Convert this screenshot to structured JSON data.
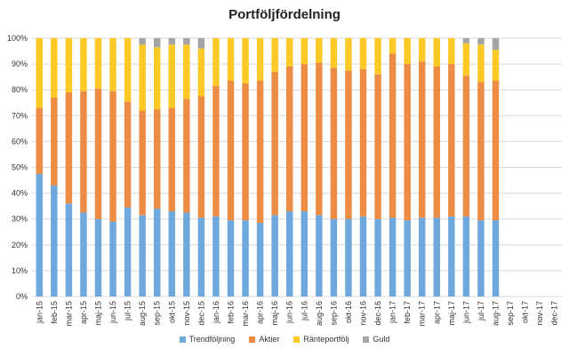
{
  "chart_data": {
    "type": "bar",
    "stacked": true,
    "title": "Portföljfördelning",
    "xlabel": "",
    "ylabel": "",
    "ylim": [
      0,
      100
    ],
    "y_ticks": [
      "0%",
      "10%",
      "20%",
      "30%",
      "40%",
      "50%",
      "60%",
      "70%",
      "80%",
      "90%",
      "100%"
    ],
    "grid": true,
    "legend_position": "bottom",
    "categories": [
      "jan-15",
      "feb-15",
      "mar-15",
      "apr-15",
      "maj-15",
      "jun-15",
      "jul-15",
      "aug-15",
      "sep-15",
      "okt-15",
      "nov-15",
      "dec-15",
      "jan-16",
      "feb-16",
      "mar-16",
      "apr-16",
      "maj-16",
      "jun-16",
      "jul-16",
      "aug-16",
      "sep-16",
      "okt-16",
      "nov-16",
      "dec-16",
      "jan-17",
      "feb-17",
      "mar-17",
      "apr-17",
      "maj-17",
      "jun-17",
      "jul-17",
      "aug-17",
      "sep-17",
      "okt-17",
      "nov-17",
      "dec-17"
    ],
    "series": [
      {
        "name": "Trendföljning",
        "color": "#6fa8dc",
        "values": [
          47.5,
          43,
          36,
          32.5,
          30,
          29,
          34.5,
          31.5,
          34,
          33,
          32.5,
          30.5,
          31,
          29.5,
          29.5,
          28.5,
          31.5,
          33,
          33,
          31.5,
          30,
          30,
          31,
          30,
          30.5,
          29.5,
          30.5,
          30.5,
          31,
          31,
          29.5,
          29.5,
          null,
          null,
          null,
          null
        ]
      },
      {
        "name": "Aktier",
        "color": "#ed8c44",
        "values": [
          25.5,
          34,
          43,
          47,
          50.5,
          50.5,
          41,
          40.5,
          38.5,
          40,
          44,
          47,
          50.5,
          54,
          53,
          55,
          55.5,
          56,
          57,
          59,
          58.5,
          57.5,
          57,
          56,
          63.5,
          60.5,
          60.5,
          58.5,
          59,
          54.5,
          53.5,
          54,
          null,
          null,
          null,
          null
        ]
      },
      {
        "name": "Ränteportfölj",
        "color": "#fcc926",
        "values": [
          27,
          23,
          21,
          20.5,
          19.5,
          20.5,
          24.5,
          25.5,
          24,
          24.5,
          21,
          18.5,
          18.5,
          16.5,
          17.5,
          16.5,
          13,
          11,
          10,
          9.5,
          11.5,
          12.5,
          12,
          14,
          6,
          10,
          9,
          11,
          10,
          12.5,
          14.5,
          12,
          null,
          null,
          null,
          null
        ]
      },
      {
        "name": "Guld",
        "color": "#a5a5a5",
        "values": [
          0,
          0,
          0,
          0,
          0,
          0,
          0,
          2.5,
          3.5,
          2.5,
          2.5,
          4,
          0,
          0,
          0,
          0,
          0,
          0,
          0,
          0,
          0,
          0,
          0,
          0,
          0,
          0,
          0,
          0,
          0,
          2,
          2.5,
          4.5,
          null,
          null,
          null,
          null
        ]
      }
    ]
  }
}
